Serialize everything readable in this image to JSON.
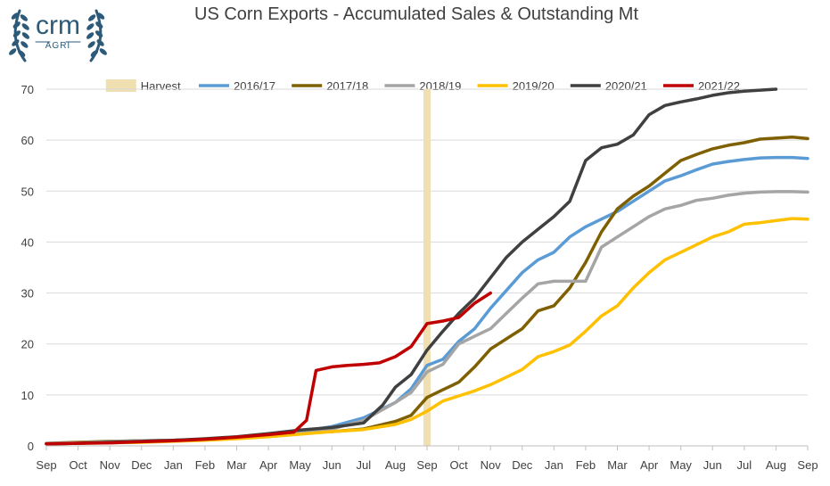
{
  "logo": {
    "name": "crm",
    "tagline": "AGRI",
    "color": "#2c5a78"
  },
  "chart_data": {
    "type": "line",
    "title": "US Corn Exports - Accumulated Sales & Outstanding Mt",
    "xlabel": "",
    "ylabel": "",
    "x_ticks": [
      "Sep",
      "Oct",
      "Nov",
      "Dec",
      "Jan",
      "Feb",
      "Mar",
      "Apr",
      "May",
      "Jun",
      "Jul",
      "Aug",
      "Sep",
      "Oct",
      "Nov",
      "Dec",
      "Jan",
      "Feb",
      "Mar",
      "Apr",
      "May",
      "Jun",
      "Jul",
      "Aug",
      "Sep"
    ],
    "x_range": [
      0,
      24
    ],
    "ylim": [
      0,
      70
    ],
    "y_ticks": [
      0,
      10,
      20,
      30,
      40,
      50,
      60,
      70
    ],
    "grid": "horizontal",
    "legend_position": "top",
    "harvest": {
      "name": "Harvest",
      "x": 12,
      "color": "#f0dfb0"
    },
    "series": [
      {
        "name": "2016/17",
        "color": "#5b9bd5",
        "points": [
          [
            0,
            0.4
          ],
          [
            1,
            0.6
          ],
          [
            2,
            0.8
          ],
          [
            3,
            1.0
          ],
          [
            4,
            1.1
          ],
          [
            5,
            1.3
          ],
          [
            6,
            1.6
          ],
          [
            7,
            2.1
          ],
          [
            8,
            2.8
          ],
          [
            9,
            3.8
          ],
          [
            10,
            5.5
          ],
          [
            11,
            8.5
          ],
          [
            11.5,
            11.2
          ],
          [
            12,
            15.8
          ],
          [
            12.5,
            17
          ],
          [
            13,
            20.5
          ],
          [
            13.5,
            23
          ],
          [
            14,
            27
          ],
          [
            14.5,
            30.5
          ],
          [
            15,
            34
          ],
          [
            15.5,
            36.5
          ],
          [
            16,
            38
          ],
          [
            16.5,
            41
          ],
          [
            17,
            43
          ],
          [
            17.5,
            44.5
          ],
          [
            18,
            46
          ],
          [
            18.5,
            48
          ],
          [
            19,
            50
          ],
          [
            19.5,
            52
          ],
          [
            20,
            53
          ],
          [
            20.5,
            54.2
          ],
          [
            21,
            55.3
          ],
          [
            21.5,
            55.8
          ],
          [
            22,
            56.2
          ],
          [
            22.5,
            56.5
          ],
          [
            23,
            56.6
          ],
          [
            23.5,
            56.6
          ],
          [
            24,
            56.4
          ]
        ]
      },
      {
        "name": "2017/18",
        "color": "#7f6000",
        "points": [
          [
            0,
            0.5
          ],
          [
            1,
            0.7
          ],
          [
            2,
            0.9
          ],
          [
            3,
            1.0
          ],
          [
            4,
            1.1
          ],
          [
            5,
            1.3
          ],
          [
            6,
            1.6
          ],
          [
            7,
            2.1
          ],
          [
            8,
            2.5
          ],
          [
            9,
            2.8
          ],
          [
            10,
            3.3
          ],
          [
            11,
            4.8
          ],
          [
            11.5,
            6
          ],
          [
            12,
            9.5
          ],
          [
            12.5,
            11
          ],
          [
            13,
            12.5
          ],
          [
            13.5,
            15.5
          ],
          [
            14,
            19
          ],
          [
            14.5,
            21
          ],
          [
            15,
            23
          ],
          [
            15.5,
            26.5
          ],
          [
            16,
            27.5
          ],
          [
            16.5,
            31
          ],
          [
            17,
            36
          ],
          [
            17.5,
            42
          ],
          [
            18,
            46.5
          ],
          [
            18.5,
            49
          ],
          [
            19,
            51
          ],
          [
            19.5,
            53.5
          ],
          [
            20,
            56
          ],
          [
            20.5,
            57.2
          ],
          [
            21,
            58.3
          ],
          [
            21.5,
            59
          ],
          [
            22,
            59.5
          ],
          [
            22.5,
            60.2
          ],
          [
            23,
            60.4
          ],
          [
            23.5,
            60.6
          ],
          [
            24,
            60.3
          ]
        ]
      },
      {
        "name": "2018/19",
        "color": "#a5a5a5",
        "points": [
          [
            0,
            0.5
          ],
          [
            1,
            0.6
          ],
          [
            2,
            0.8
          ],
          [
            3,
            1.0
          ],
          [
            4,
            1.1
          ],
          [
            5,
            1.3
          ],
          [
            6,
            1.6
          ],
          [
            7,
            2.1
          ],
          [
            8,
            2.6
          ],
          [
            9,
            3.3
          ],
          [
            10,
            5
          ],
          [
            11,
            8.5
          ],
          [
            11.5,
            10.5
          ],
          [
            12,
            14.5
          ],
          [
            12.5,
            16
          ],
          [
            13,
            20
          ],
          [
            13.5,
            21.5
          ],
          [
            14,
            23
          ],
          [
            14.5,
            26
          ],
          [
            15,
            29
          ],
          [
            15.5,
            31.8
          ],
          [
            16,
            32.3
          ],
          [
            16.5,
            32.3
          ],
          [
            17,
            32.3
          ],
          [
            17.5,
            39
          ],
          [
            18,
            41
          ],
          [
            18.5,
            43
          ],
          [
            19,
            45
          ],
          [
            19.5,
            46.5
          ],
          [
            20,
            47.2
          ],
          [
            20.5,
            48.2
          ],
          [
            21,
            48.6
          ],
          [
            21.5,
            49.2
          ],
          [
            22,
            49.6
          ],
          [
            22.5,
            49.8
          ],
          [
            23,
            49.9
          ],
          [
            23.5,
            49.9
          ],
          [
            24,
            49.8
          ]
        ]
      },
      {
        "name": "2019/20",
        "color": "#ffc000",
        "points": [
          [
            0,
            0.4
          ],
          [
            1,
            0.5
          ],
          [
            2,
            0.6
          ],
          [
            3,
            0.7
          ],
          [
            4,
            0.9
          ],
          [
            5,
            1.1
          ],
          [
            6,
            1.4
          ],
          [
            7,
            1.8
          ],
          [
            8,
            2.3
          ],
          [
            9,
            2.8
          ],
          [
            10,
            3.2
          ],
          [
            11,
            4.2
          ],
          [
            11.5,
            5.2
          ],
          [
            12,
            6.8
          ],
          [
            12.5,
            8.8
          ],
          [
            13,
            9.8
          ],
          [
            13.5,
            10.8
          ],
          [
            14,
            12
          ],
          [
            14.5,
            13.5
          ],
          [
            15,
            15
          ],
          [
            15.5,
            17.5
          ],
          [
            16,
            18.5
          ],
          [
            16.5,
            19.8
          ],
          [
            17,
            22.5
          ],
          [
            17.5,
            25.5
          ],
          [
            18,
            27.5
          ],
          [
            18.5,
            31
          ],
          [
            19,
            34
          ],
          [
            19.5,
            36.5
          ],
          [
            20,
            38
          ],
          [
            20.5,
            39.5
          ],
          [
            21,
            41
          ],
          [
            21.5,
            42
          ],
          [
            22,
            43.5
          ],
          [
            22.5,
            43.8
          ],
          [
            23,
            44.2
          ],
          [
            23.5,
            44.6
          ],
          [
            24,
            44.5
          ]
        ]
      },
      {
        "name": "2020/21",
        "color": "#404040",
        "points": [
          [
            0,
            0.4
          ],
          [
            1,
            0.5
          ],
          [
            2,
            0.7
          ],
          [
            3,
            0.9
          ],
          [
            4,
            1.1
          ],
          [
            5,
            1.4
          ],
          [
            6,
            1.8
          ],
          [
            7,
            2.4
          ],
          [
            8,
            3.1
          ],
          [
            9,
            3.6
          ],
          [
            10,
            4.5
          ],
          [
            10.6,
            8
          ],
          [
            11,
            11.5
          ],
          [
            11.5,
            14
          ],
          [
            12,
            18.8
          ],
          [
            12.5,
            22.5
          ],
          [
            13,
            26
          ],
          [
            13.5,
            29
          ],
          [
            14,
            33
          ],
          [
            14.5,
            37
          ],
          [
            15,
            40
          ],
          [
            15.5,
            42.5
          ],
          [
            16,
            45
          ],
          [
            16.5,
            48
          ],
          [
            17,
            56
          ],
          [
            17.5,
            58.5
          ],
          [
            18,
            59.2
          ],
          [
            18.5,
            61
          ],
          [
            19,
            65
          ],
          [
            19.5,
            66.8
          ],
          [
            20,
            67.5
          ],
          [
            20.5,
            68.1
          ],
          [
            21,
            68.8
          ],
          [
            21.5,
            69.3
          ],
          [
            22,
            69.6
          ],
          [
            22.5,
            69.8
          ],
          [
            23,
            70.0
          ]
        ]
      },
      {
        "name": "2021/22",
        "color": "#c00000",
        "points": [
          [
            0,
            0.4
          ],
          [
            1,
            0.5
          ],
          [
            2,
            0.6
          ],
          [
            3,
            0.8
          ],
          [
            4,
            1.0
          ],
          [
            5,
            1.3
          ],
          [
            6,
            1.7
          ],
          [
            7,
            2.2
          ],
          [
            7.8,
            2.7
          ],
          [
            8.2,
            5
          ],
          [
            8.5,
            14.8
          ],
          [
            9,
            15.5
          ],
          [
            9.5,
            15.8
          ],
          [
            10,
            16
          ],
          [
            10.5,
            16.3
          ],
          [
            11,
            17.5
          ],
          [
            11.5,
            19.5
          ],
          [
            12,
            24
          ],
          [
            12.5,
            24.5
          ],
          [
            13,
            25.2
          ],
          [
            13.5,
            28
          ],
          [
            14,
            30
          ]
        ]
      }
    ]
  }
}
